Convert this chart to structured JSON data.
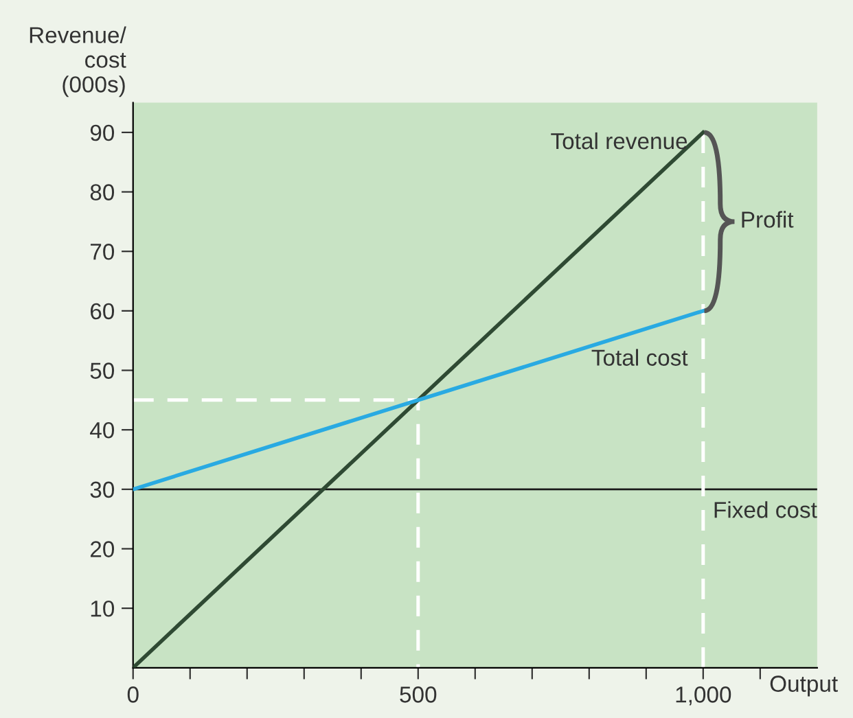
{
  "chart_data": {
    "type": "line",
    "xlabel": "Output",
    "ylabel": "Revenue/\ncost\n(000s)",
    "xlim": [
      0,
      1200
    ],
    "ylim": [
      0,
      95
    ],
    "xticks": [
      0,
      {
        "value": 100,
        "label": null
      },
      {
        "value": 200,
        "label": null
      },
      {
        "value": 300,
        "label": null
      },
      {
        "value": 400,
        "label": null
      },
      500,
      {
        "value": 600,
        "label": null
      },
      {
        "value": 700,
        "label": null
      },
      {
        "value": 800,
        "label": null
      },
      {
        "value": 900,
        "label": null
      },
      {
        "value": 1000,
        "label": "1,000"
      },
      {
        "value": 1100,
        "label": null
      }
    ],
    "yticks": [
      10,
      20,
      30,
      40,
      50,
      60,
      70,
      80,
      90
    ],
    "grid": false,
    "legend": false,
    "marker": "none",
    "line_style": "solid",
    "series": [
      {
        "name": "Total revenue",
        "color": "#2f4a33",
        "x": [
          0,
          1000
        ],
        "values": [
          0,
          90
        ]
      },
      {
        "name": "Total cost",
        "color": "#29aae2",
        "x": [
          0,
          1000
        ],
        "values": [
          30,
          60
        ]
      },
      {
        "color": "#ffffff",
        "x": [
          0,
          500,
          500
        ],
        "values": [
          45,
          45,
          0
        ],
        "line_style": "dashed"
      },
      {
        "color": "#ffffff",
        "x": [
          1000,
          1000
        ],
        "values": [
          90,
          0
        ],
        "line_style": "dashed"
      }
    ],
    "ref_lines": [
      {
        "axis": "y",
        "value": 30,
        "label": "Fixed cost",
        "color": "#1a1a1a"
      }
    ],
    "annotations": [
      {
        "text": "Profit",
        "x": 1000,
        "y": 75
      }
    ]
  }
}
